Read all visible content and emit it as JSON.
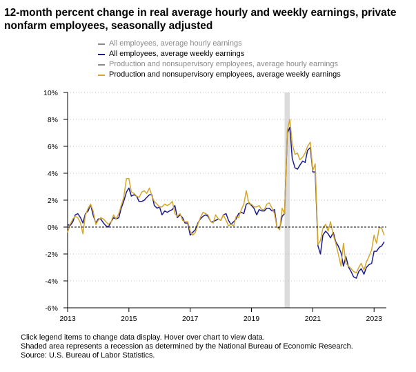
{
  "title": "12-month percent change in real average hourly and weekly earnings, private nonfarm employees, seasonally adjusted",
  "footer": {
    "line1": "Click legend items to change data display. Hover over chart to view data.",
    "line2": "Shaded area represents a recession as determined by the National Bureau of Economic Research.",
    "line3": "Source: U.S. Bureau of Labor Statistics."
  },
  "chart_data": {
    "type": "line",
    "xlim": [
      2013.0,
      2023.4
    ],
    "ylim": [
      -6,
      10
    ],
    "yticks": [
      -6,
      -4,
      -2,
      0,
      2,
      4,
      6,
      8,
      10
    ],
    "ytick_labels": [
      "-6%",
      "-4%",
      "-2%",
      "0%",
      "2%",
      "4%",
      "6%",
      "8%",
      "10%"
    ],
    "xticks": [
      2013,
      2015,
      2017,
      2019,
      2021,
      2023
    ],
    "xtick_labels": [
      "2013",
      "2015",
      "2017",
      "2019",
      "2021",
      "2023"
    ],
    "grid": "horizontal-dotted",
    "zero_line": "dashed",
    "legend_position": "top",
    "recession": [
      2020.08,
      2020.25
    ],
    "series": [
      {
        "name": "All employees, average hourly earnings",
        "visible": false,
        "color": "#8a8a8a",
        "x": [],
        "values": []
      },
      {
        "name": "All employees, average weekly earnings",
        "visible": true,
        "color": "#1a1a8c",
        "x": [
          2013.0,
          2013.08,
          2013.17,
          2013.25,
          2013.33,
          2013.42,
          2013.5,
          2013.58,
          2013.67,
          2013.75,
          2013.83,
          2013.92,
          2014.0,
          2014.08,
          2014.17,
          2014.25,
          2014.33,
          2014.42,
          2014.5,
          2014.58,
          2014.67,
          2014.75,
          2014.83,
          2014.92,
          2015.0,
          2015.08,
          2015.17,
          2015.25,
          2015.33,
          2015.42,
          2015.5,
          2015.58,
          2015.67,
          2015.75,
          2015.83,
          2015.92,
          2016.0,
          2016.08,
          2016.17,
          2016.25,
          2016.33,
          2016.42,
          2016.5,
          2016.58,
          2016.67,
          2016.75,
          2016.83,
          2016.92,
          2017.0,
          2017.08,
          2017.17,
          2017.25,
          2017.33,
          2017.42,
          2017.5,
          2017.58,
          2017.67,
          2017.75,
          2017.83,
          2017.92,
          2018.0,
          2018.08,
          2018.17,
          2018.25,
          2018.33,
          2018.42,
          2018.5,
          2018.58,
          2018.67,
          2018.75,
          2018.83,
          2018.92,
          2019.0,
          2019.08,
          2019.17,
          2019.25,
          2019.33,
          2019.42,
          2019.5,
          2019.58,
          2019.67,
          2019.75,
          2019.83,
          2019.92,
          2020.0,
          2020.08,
          2020.17,
          2020.25,
          2020.33,
          2020.42,
          2020.5,
          2020.58,
          2020.67,
          2020.75,
          2020.83,
          2020.92,
          2021.0,
          2021.08,
          2021.17,
          2021.25,
          2021.33,
          2021.42,
          2021.5,
          2021.58,
          2021.67,
          2021.75,
          2021.83,
          2021.92,
          2022.0,
          2022.08,
          2022.17,
          2022.25,
          2022.33,
          2022.42,
          2022.5,
          2022.58,
          2022.67,
          2022.75,
          2022.83,
          2022.92,
          2023.0,
          2023.08,
          2023.17,
          2023.25,
          2023.33
        ],
        "values": [
          0.2,
          0.1,
          0.4,
          0.9,
          1.0,
          0.7,
          0.3,
          1.0,
          1.2,
          1.7,
          0.9,
          0.3,
          0.6,
          0.6,
          0.3,
          0.1,
          0.0,
          0.4,
          0.7,
          0.6,
          0.7,
          1.4,
          1.9,
          2.6,
          2.9,
          2.3,
          2.4,
          2.3,
          1.9,
          1.9,
          2.0,
          2.2,
          2.4,
          2.4,
          1.6,
          1.4,
          1.5,
          0.9,
          1.2,
          1.1,
          1.2,
          1.3,
          1.6,
          0.7,
          0.9,
          0.7,
          0.3,
          0.3,
          -0.6,
          -0.4,
          -0.2,
          0.3,
          0.6,
          0.8,
          0.9,
          0.8,
          0.4,
          0.4,
          0.5,
          0.6,
          0.5,
          0.9,
          1.0,
          0.5,
          0.2,
          0.4,
          0.6,
          1.0,
          1.1,
          1.0,
          1.7,
          1.8,
          1.6,
          1.4,
          0.9,
          1.3,
          1.2,
          1.2,
          1.4,
          1.4,
          1.2,
          1.3,
          0.0,
          -0.1,
          0.8,
          1.0,
          7.0,
          7.4,
          5.1,
          4.4,
          4.3,
          4.6,
          4.9,
          4.8,
          5.7,
          5.9,
          4.1,
          4.1,
          -1.4,
          -2.0,
          -0.6,
          -0.3,
          -0.5,
          -0.8,
          -0.4,
          -1.1,
          -1.4,
          -1.9,
          -2.9,
          -2.2,
          -3.0,
          -3.3,
          -3.7,
          -3.8,
          -3.3,
          -3.1,
          -3.5,
          -3.0,
          -2.8,
          -2.7,
          -1.8,
          -1.8,
          -1.5,
          -1.4,
          -1.1
        ]
      },
      {
        "name": "Production and nonsupervisory employees, average hourly earnings",
        "visible": false,
        "color": "#8a8a8a",
        "x": [],
        "values": []
      },
      {
        "name": "Production and nonsupervisory employees, average weekly earnings",
        "visible": true,
        "color": "#d4a62a",
        "x": [
          2013.0,
          2013.08,
          2013.17,
          2013.25,
          2013.33,
          2013.42,
          2013.5,
          2013.58,
          2013.67,
          2013.75,
          2013.83,
          2013.92,
          2014.0,
          2014.08,
          2014.17,
          2014.25,
          2014.33,
          2014.42,
          2014.5,
          2014.58,
          2014.67,
          2014.75,
          2014.83,
          2014.92,
          2015.0,
          2015.08,
          2015.17,
          2015.25,
          2015.33,
          2015.42,
          2015.5,
          2015.58,
          2015.67,
          2015.75,
          2015.83,
          2015.92,
          2016.0,
          2016.08,
          2016.17,
          2016.25,
          2016.33,
          2016.42,
          2016.5,
          2016.58,
          2016.67,
          2016.75,
          2016.83,
          2016.92,
          2017.0,
          2017.08,
          2017.17,
          2017.25,
          2017.33,
          2017.42,
          2017.5,
          2017.58,
          2017.67,
          2017.75,
          2017.83,
          2017.92,
          2018.0,
          2018.08,
          2018.17,
          2018.25,
          2018.33,
          2018.42,
          2018.5,
          2018.58,
          2018.67,
          2018.75,
          2018.83,
          2018.92,
          2019.0,
          2019.08,
          2019.17,
          2019.25,
          2019.33,
          2019.42,
          2019.5,
          2019.58,
          2019.67,
          2019.75,
          2019.83,
          2019.92,
          2020.0,
          2020.08,
          2020.17,
          2020.25,
          2020.33,
          2020.42,
          2020.5,
          2020.58,
          2020.67,
          2020.75,
          2020.83,
          2020.92,
          2021.0,
          2021.08,
          2021.17,
          2021.25,
          2021.33,
          2021.42,
          2021.5,
          2021.58,
          2021.67,
          2021.75,
          2021.83,
          2021.92,
          2022.0,
          2022.08,
          2022.17,
          2022.25,
          2022.33,
          2022.42,
          2022.5,
          2022.58,
          2022.67,
          2022.75,
          2022.83,
          2022.92,
          2023.0,
          2023.08,
          2023.17,
          2023.25,
          2023.33
        ],
        "values": [
          -0.4,
          0.2,
          0.6,
          0.8,
          0.7,
          0.3,
          -0.5,
          0.9,
          1.4,
          1.7,
          1.2,
          0.2,
          0.5,
          0.7,
          0.6,
          0.4,
          0.2,
          0.4,
          0.9,
          0.6,
          1.0,
          1.6,
          2.2,
          3.6,
          3.6,
          2.6,
          2.5,
          2.3,
          2.2,
          2.6,
          2.7,
          2.5,
          2.9,
          2.3,
          1.9,
          1.7,
          1.5,
          1.5,
          1.7,
          1.6,
          1.7,
          1.9,
          1.0,
          0.8,
          1.0,
          0.5,
          0.4,
          0.4,
          -0.3,
          -0.6,
          -0.4,
          0.2,
          0.7,
          1.1,
          1.0,
          0.9,
          0.4,
          0.3,
          0.9,
          0.6,
          0.5,
          0.9,
          0.5,
          0.1,
          0.2,
          0.1,
          0.8,
          0.7,
          1.3,
          1.7,
          2.7,
          1.7,
          1.7,
          1.5,
          1.5,
          1.6,
          1.3,
          1.3,
          1.7,
          1.8,
          1.4,
          1.0,
          0.0,
          -0.2,
          1.4,
          1.0,
          7.2,
          8.0,
          6.2,
          5.4,
          5.5,
          5.0,
          5.2,
          5.5,
          6.0,
          6.3,
          4.2,
          4.7,
          -1.3,
          -1.0,
          -0.1,
          0.2,
          -0.3,
          0.4,
          -0.6,
          -1.2,
          -2.0,
          -2.9,
          -1.2,
          -2.7,
          -2.9,
          -3.1,
          -3.3,
          -3.4,
          -3.0,
          -2.7,
          -3.2,
          -2.6,
          -2.2,
          -1.7,
          -0.6,
          -1.2,
          0.0,
          -0.1,
          -0.6
        ]
      }
    ]
  }
}
